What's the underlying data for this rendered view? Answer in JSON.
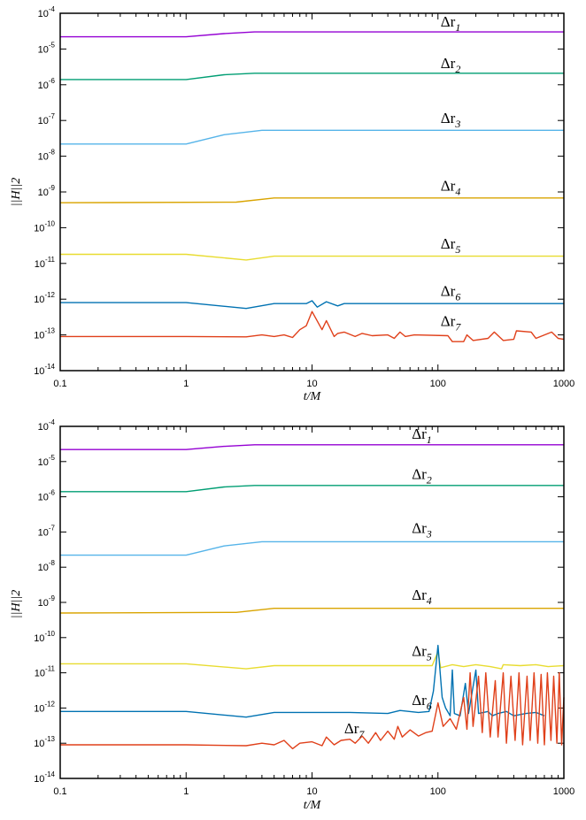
{
  "chart_data": [
    {
      "type": "line",
      "xscale": "log",
      "yscale": "log",
      "xlabel": "t/M",
      "ylabel": "||H||2",
      "xlim": [
        0.1,
        1000
      ],
      "ylim": [
        1e-14,
        0.0001
      ],
      "x_ticks": [
        0.1,
        1,
        10,
        100,
        1000
      ],
      "x_tick_labels": [
        "0.1",
        "1",
        "10",
        "100",
        "1000"
      ],
      "y_tick_exponents": [
        "-4",
        "-5",
        "-6",
        "-7",
        "-8",
        "-9",
        "-10",
        "-11",
        "-12",
        "-13",
        "-14"
      ],
      "grid": false,
      "series": [
        {
          "name": "Δr1",
          "sub": "1",
          "color": "#9400d3",
          "label_at": [
            105,
            4.2e-05
          ],
          "points": [
            [
              0.1,
              2.2e-05
            ],
            [
              1,
              2.2e-05
            ],
            [
              2,
              2.7e-05
            ],
            [
              3.5,
              3e-05
            ],
            [
              1000,
              3e-05
            ]
          ]
        },
        {
          "name": "Δr2",
          "sub": "2",
          "color": "#009e73",
          "label_at": [
            105,
            2.9e-06
          ],
          "points": [
            [
              0.1,
              1.4e-06
            ],
            [
              1,
              1.4e-06
            ],
            [
              2,
              1.9e-06
            ],
            [
              3.5,
              2.1e-06
            ],
            [
              1000,
              2.1e-06
            ]
          ]
        },
        {
          "name": "Δr3",
          "sub": "3",
          "color": "#56b4e9",
          "label_at": [
            105,
            8.5e-08
          ],
          "points": [
            [
              0.1,
              2.2e-08
            ],
            [
              1,
              2.2e-08
            ],
            [
              2,
              4e-08
            ],
            [
              4,
              5.3e-08
            ],
            [
              1000,
              5.3e-08
            ]
          ]
        },
        {
          "name": "Δr4",
          "sub": "4",
          "color": "#d9a400",
          "label_at": [
            105,
            1.1e-09
          ],
          "points": [
            [
              0.1,
              5e-10
            ],
            [
              2.5,
              5.2e-10
            ],
            [
              5,
              6.8e-10
            ],
            [
              1000,
              6.8e-10
            ]
          ]
        },
        {
          "name": "Δr5",
          "sub": "5",
          "color": "#e8dc30",
          "label_at": [
            105,
            2.6e-11
          ],
          "points": [
            [
              0.1,
              1.8e-11
            ],
            [
              1,
              1.8e-11
            ],
            [
              3,
              1.25e-11
            ],
            [
              5,
              1.6e-11
            ],
            [
              1000,
              1.6e-11
            ]
          ]
        },
        {
          "name": "Δr6",
          "sub": "6",
          "color": "#0072b2",
          "label_at": [
            105,
            1.25e-12
          ],
          "points": [
            [
              0.1,
              8e-13
            ],
            [
              1,
              8e-13
            ],
            [
              3,
              5.5e-13
            ],
            [
              5,
              7.5e-13
            ],
            [
              9,
              7.5e-13
            ],
            [
              10,
              9e-13
            ],
            [
              11,
              6e-13
            ],
            [
              13,
              8.5e-13
            ],
            [
              16,
              6.5e-13
            ],
            [
              18,
              7.5e-13
            ],
            [
              1000,
              7.5e-13
            ]
          ]
        },
        {
          "name": "Δr7",
          "sub": "7",
          "color": "#e0401a",
          "label_at": [
            105,
            1.8e-13
          ],
          "points": [
            [
              0.1,
              9e-14
            ],
            [
              1,
              9e-14
            ],
            [
              3,
              8.8e-14
            ],
            [
              4,
              1e-13
            ],
            [
              5,
              9e-14
            ],
            [
              6,
              1e-13
            ],
            [
              7,
              8.5e-14
            ],
            [
              8,
              1.4e-13
            ],
            [
              9,
              1.8e-13
            ],
            [
              10,
              4.5e-13
            ],
            [
              12,
              1.4e-13
            ],
            [
              13,
              2.5e-13
            ],
            [
              15,
              9e-14
            ],
            [
              16,
              1.1e-13
            ],
            [
              18,
              1.2e-13
            ],
            [
              22,
              9e-14
            ],
            [
              25,
              1.1e-13
            ],
            [
              30,
              9.5e-14
            ],
            [
              40,
              1e-13
            ],
            [
              45,
              8e-14
            ],
            [
              50,
              1.2e-13
            ],
            [
              55,
              9e-14
            ],
            [
              65,
              1e-13
            ],
            [
              120,
              9.5e-14
            ],
            [
              130,
              6.5e-14
            ],
            [
              160,
              6.5e-14
            ],
            [
              170,
              1e-13
            ],
            [
              190,
              7e-14
            ],
            [
              250,
              8e-14
            ],
            [
              280,
              1.2e-13
            ],
            [
              330,
              7e-14
            ],
            [
              400,
              7.5e-14
            ],
            [
              420,
              1.3e-13
            ],
            [
              550,
              1.2e-13
            ],
            [
              600,
              8e-14
            ],
            [
              800,
              1.2e-13
            ],
            [
              900,
              8e-14
            ],
            [
              1000,
              7.5e-14
            ]
          ]
        }
      ]
    },
    {
      "type": "line",
      "xscale": "log",
      "yscale": "log",
      "xlabel": "t/M",
      "ylabel": "||H||2",
      "xlim": [
        0.1,
        1000
      ],
      "ylim": [
        1e-14,
        0.0001
      ],
      "x_ticks": [
        0.1,
        1,
        10,
        100,
        1000
      ],
      "x_tick_labels": [
        "0.1",
        "1",
        "10",
        "100",
        "1000"
      ],
      "y_tick_exponents": [
        "-4",
        "-5",
        "-6",
        "-7",
        "-8",
        "-9",
        "-10",
        "-11",
        "-12",
        "-13",
        "-14"
      ],
      "grid": false,
      "series": [
        {
          "name": "Δr1",
          "sub": "1",
          "color": "#9400d3",
          "label_at": [
            62,
            4.4e-05
          ],
          "points": [
            [
              0.1,
              2.2e-05
            ],
            [
              1,
              2.2e-05
            ],
            [
              2,
              2.7e-05
            ],
            [
              3.5,
              3e-05
            ],
            [
              1000,
              3e-05
            ]
          ]
        },
        {
          "name": "Δr2",
          "sub": "2",
          "color": "#009e73",
          "label_at": [
            62,
            3.2e-06
          ],
          "points": [
            [
              0.1,
              1.4e-06
            ],
            [
              1,
              1.4e-06
            ],
            [
              2,
              1.9e-06
            ],
            [
              3.5,
              2.1e-06
            ],
            [
              1000,
              2.1e-06
            ]
          ]
        },
        {
          "name": "Δr3",
          "sub": "3",
          "color": "#56b4e9",
          "label_at": [
            62,
            9.5e-08
          ],
          "points": [
            [
              0.1,
              2.2e-08
            ],
            [
              1,
              2.2e-08
            ],
            [
              2,
              4e-08
            ],
            [
              4,
              5.3e-08
            ],
            [
              1000,
              5.3e-08
            ]
          ]
        },
        {
          "name": "Δr4",
          "sub": "4",
          "color": "#d9a400",
          "label_at": [
            62,
            1.2e-09
          ],
          "points": [
            [
              0.1,
              5e-10
            ],
            [
              2.5,
              5.2e-10
            ],
            [
              5,
              6.8e-10
            ],
            [
              1000,
              6.8e-10
            ]
          ]
        },
        {
          "name": "Δr5",
          "sub": "5",
          "color": "#e8dc30",
          "label_at": [
            62,
            3e-11
          ],
          "points": [
            [
              0.1,
              1.8e-11
            ],
            [
              1,
              1.8e-11
            ],
            [
              3,
              1.3e-11
            ],
            [
              5,
              1.6e-11
            ],
            [
              90,
              1.6e-11
            ],
            [
              100,
              4e-11
            ],
            [
              105,
              1.4e-11
            ],
            [
              130,
              1.7e-11
            ],
            [
              160,
              1.5e-11
            ],
            [
              200,
              1.7e-11
            ],
            [
              260,
              1.5e-11
            ],
            [
              320,
              1.3e-11
            ],
            [
              330,
              1.7e-11
            ],
            [
              450,
              1.6e-11
            ],
            [
              600,
              1.7e-11
            ],
            [
              750,
              1.5e-11
            ],
            [
              1000,
              1.6e-11
            ]
          ]
        },
        {
          "name": "Δr6",
          "sub": "6",
          "color": "#0072b2",
          "label_at": [
            62,
            1.2e-12
          ],
          "points": [
            [
              0.1,
              8e-13
            ],
            [
              1,
              8e-13
            ],
            [
              3,
              5.5e-13
            ],
            [
              5,
              7.5e-13
            ],
            [
              20,
              7.5e-13
            ],
            [
              40,
              7e-13
            ],
            [
              50,
              8.5e-13
            ],
            [
              70,
              7.5e-13
            ],
            [
              85,
              8e-13
            ],
            [
              92,
              3e-12
            ],
            [
              100,
              6e-11
            ],
            [
              108,
              2e-12
            ],
            [
              115,
              1e-12
            ],
            [
              125,
              6e-13
            ],
            [
              130,
              1.2e-11
            ],
            [
              135,
              7e-13
            ],
            [
              150,
              6e-13
            ],
            [
              165,
              5e-12
            ],
            [
              175,
              7e-13
            ],
            [
              200,
              1.2e-11
            ],
            [
              210,
              7e-13
            ],
            [
              250,
              8e-13
            ],
            [
              270,
              6e-13
            ],
            [
              300,
              7e-13
            ],
            [
              350,
              8e-13
            ],
            [
              400,
              6e-13
            ],
            [
              500,
              7e-13
            ],
            [
              600,
              7.5e-13
            ],
            [
              700,
              6e-13
            ]
          ]
        },
        {
          "name": "Δr7",
          "sub": "7",
          "color": "#e0401a",
          "label_at": [
            18,
            1.9e-13
          ],
          "points": [
            [
              0.1,
              9e-14
            ],
            [
              1,
              9e-14
            ],
            [
              3,
              8.5e-14
            ],
            [
              4,
              1e-13
            ],
            [
              5,
              9e-14
            ],
            [
              6,
              1.2e-13
            ],
            [
              7,
              7e-14
            ],
            [
              8,
              1e-13
            ],
            [
              10,
              1.1e-13
            ],
            [
              12,
              8.5e-14
            ],
            [
              13,
              1.5e-13
            ],
            [
              15,
              9e-14
            ],
            [
              17,
              1.2e-13
            ],
            [
              20,
              1.3e-13
            ],
            [
              22,
              1e-13
            ],
            [
              25,
              1.6e-13
            ],
            [
              28,
              1e-13
            ],
            [
              32,
              2e-13
            ],
            [
              35,
              1.2e-13
            ],
            [
              40,
              2.2e-13
            ],
            [
              45,
              1.3e-13
            ],
            [
              48,
              3e-13
            ],
            [
              52,
              1.5e-13
            ],
            [
              60,
              2.4e-13
            ],
            [
              70,
              1.6e-13
            ],
            [
              80,
              2e-13
            ],
            [
              90,
              2.2e-13
            ],
            [
              100,
              1.4e-12
            ],
            [
              110,
              3e-13
            ],
            [
              125,
              5e-13
            ],
            [
              140,
              2.5e-13
            ],
            [
              160,
              2e-12
            ],
            [
              170,
              2.5e-13
            ],
            [
              180,
              1e-11
            ],
            [
              190,
              3e-13
            ],
            [
              210,
              8e-12
            ],
            [
              225,
              2e-13
            ],
            [
              240,
              1e-11
            ],
            [
              260,
              1.5e-13
            ],
            [
              285,
              6e-12
            ],
            [
              300,
              1.5e-13
            ],
            [
              330,
              1e-11
            ],
            [
              350,
              1e-13
            ],
            [
              380,
              8e-12
            ],
            [
              410,
              1.2e-13
            ],
            [
              440,
              1e-11
            ],
            [
              470,
              9e-14
            ],
            [
              510,
              8e-12
            ],
            [
              540,
              1.2e-13
            ],
            [
              580,
              1e-11
            ],
            [
              620,
              1e-13
            ],
            [
              660,
              9e-12
            ],
            [
              700,
              9e-14
            ],
            [
              740,
              1e-11
            ],
            [
              790,
              1.2e-13
            ],
            [
              830,
              8e-12
            ],
            [
              880,
              1e-13
            ],
            [
              920,
              1e-11
            ],
            [
              960,
              9e-14
            ],
            [
              1000,
              2e-12
            ]
          ]
        }
      ]
    }
  ]
}
